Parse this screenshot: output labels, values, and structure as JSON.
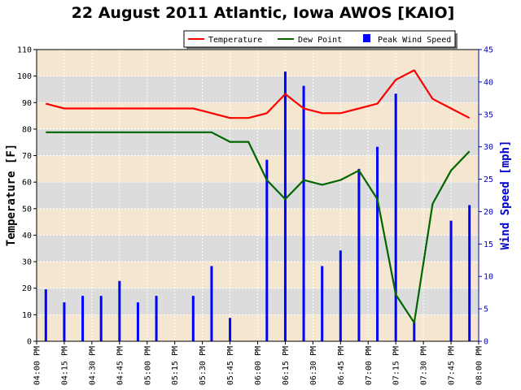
{
  "chart_data": {
    "type": "line",
    "title": "22 August 2011 Atlantic, Iowa AWOS [KAIO]",
    "ylabel": "Temperature [F]",
    "y2label": "Wind Speed [mph]",
    "ylim": [
      0,
      110
    ],
    "y2lim": [
      0,
      45
    ],
    "yticks": [
      0,
      10,
      20,
      30,
      40,
      50,
      60,
      70,
      80,
      90,
      100,
      110
    ],
    "y2ticks": [
      0,
      5,
      10,
      15,
      20,
      25,
      30,
      35,
      40,
      45
    ],
    "xlim": [
      "04:00 PM",
      "08:00 PM"
    ],
    "x_ticks": [
      "04:00 PM",
      "04:15 PM",
      "04:30 PM",
      "04:45 PM",
      "05:00 PM",
      "05:15 PM",
      "05:30 PM",
      "05:45 PM",
      "06:00 PM",
      "06:15 PM",
      "06:30 PM",
      "06:45 PM",
      "07:00 PM",
      "07:15 PM",
      "07:30 PM",
      "07:45 PM",
      "08:00 PM"
    ],
    "legend_position": "top-right",
    "grid": true,
    "series": [
      {
        "name": "Temperature",
        "kind": "line",
        "axis": "left",
        "color": "#ff0000",
        "x": [
          "04:05 PM",
          "04:15 PM",
          "04:25 PM",
          "04:35 PM",
          "04:45 PM",
          "04:55 PM",
          "05:05 PM",
          "05:15 PM",
          "05:25 PM",
          "05:35 PM",
          "05:45 PM",
          "05:55 PM",
          "06:05 PM",
          "06:15 PM",
          "06:25 PM",
          "06:35 PM",
          "06:45 PM",
          "06:55 PM",
          "07:05 PM",
          "07:15 PM",
          "07:25 PM",
          "07:35 PM",
          "07:45 PM",
          "07:55 PM"
        ],
        "values": [
          89.6,
          87.8,
          87.8,
          87.8,
          87.8,
          87.8,
          87.8,
          87.8,
          87.8,
          86.0,
          84.2,
          84.2,
          86.0,
          93.2,
          87.8,
          86.0,
          86.0,
          87.8,
          89.6,
          98.6,
          102.2,
          91.4,
          87.8,
          84.2
        ]
      },
      {
        "name": "Dew Point",
        "kind": "line",
        "axis": "left",
        "color": "#006600",
        "x": [
          "04:05 PM",
          "04:15 PM",
          "04:25 PM",
          "04:35 PM",
          "04:45 PM",
          "04:55 PM",
          "05:05 PM",
          "05:15 PM",
          "05:25 PM",
          "05:35 PM",
          "05:45 PM",
          "05:55 PM",
          "06:05 PM",
          "06:15 PM",
          "06:25 PM",
          "06:35 PM",
          "06:45 PM",
          "06:55 PM",
          "07:05 PM",
          "07:15 PM",
          "07:25 PM",
          "07:35 PM",
          "07:45 PM",
          "07:55 PM"
        ],
        "values": [
          78.8,
          78.8,
          78.8,
          78.8,
          78.8,
          78.8,
          78.8,
          78.8,
          78.8,
          78.8,
          75.2,
          75.2,
          60.8,
          53.6,
          60.8,
          59.0,
          60.8,
          64.4,
          53.6,
          17.6,
          7.0,
          51.8,
          64.4,
          71.6
        ]
      },
      {
        "name": "Peak Wind Speed",
        "kind": "bar",
        "axis": "right",
        "color": "#0000ff",
        "x": [
          "04:05 PM",
          "04:15 PM",
          "04:25 PM",
          "04:35 PM",
          "04:45 PM",
          "04:55 PM",
          "05:05 PM",
          "05:25 PM",
          "05:35 PM",
          "05:45 PM",
          "06:05 PM",
          "06:15 PM",
          "06:25 PM",
          "06:35 PM",
          "06:45 PM",
          "06:55 PM",
          "07:05 PM",
          "07:15 PM",
          "07:25 PM",
          "07:45 PM",
          "07:55 PM"
        ],
        "values": [
          8,
          6,
          7,
          7,
          9.3,
          6,
          7,
          7,
          11.6,
          3.6,
          28,
          41.6,
          39.4,
          11.6,
          14,
          26.6,
          30,
          38.2,
          3,
          18.6,
          21
        ]
      }
    ]
  }
}
